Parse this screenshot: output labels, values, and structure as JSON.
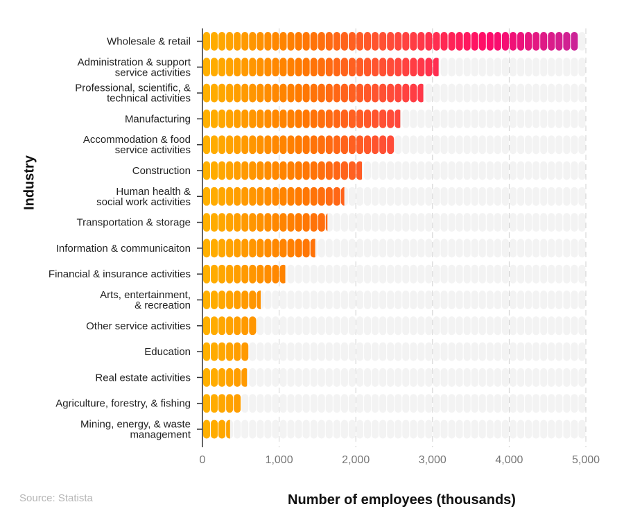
{
  "chart_data": {
    "type": "bar",
    "orientation": "horizontal",
    "title": "",
    "xlabel": "Number of employees (thousands)",
    "ylabel": "Industry",
    "source": "Source: Statista",
    "xlim": [
      0,
      5000
    ],
    "xticks": [
      "0",
      "1,000",
      "2,000",
      "3,000",
      "4,000",
      "5,000"
    ],
    "grid": "vertical dashed",
    "categories": [
      [
        "Wholesale & retail"
      ],
      [
        "Administration & support",
        "service activities"
      ],
      [
        "Professional, scientific, &",
        "technical activities"
      ],
      [
        "Manufacturing"
      ],
      [
        "Accommodation & food",
        "service activities"
      ],
      [
        "Construction"
      ],
      [
        "Human health &",
        "social work activities"
      ],
      [
        "Transportation & storage"
      ],
      [
        "Information & communicaiton"
      ],
      [
        "Financial & insurance activities"
      ],
      [
        "Arts, entertainment,",
        "& recreation"
      ],
      [
        "Other service activities"
      ],
      [
        "Education"
      ],
      [
        "Real estate activities"
      ],
      [
        "Agriculture, forestry, & fishing"
      ],
      [
        "Mining, energy, & waste",
        "management"
      ]
    ],
    "values": [
      4900,
      3080,
      2880,
      2580,
      2500,
      2080,
      1850,
      1630,
      1470,
      1080,
      760,
      710,
      600,
      580,
      500,
      360
    ],
    "colors": {
      "gradient": [
        "#FFB000",
        "#FF7A00",
        "#FF4A3A",
        "#FF0A6A",
        "#C8259A"
      ],
      "track": "#F3F3F3"
    }
  }
}
